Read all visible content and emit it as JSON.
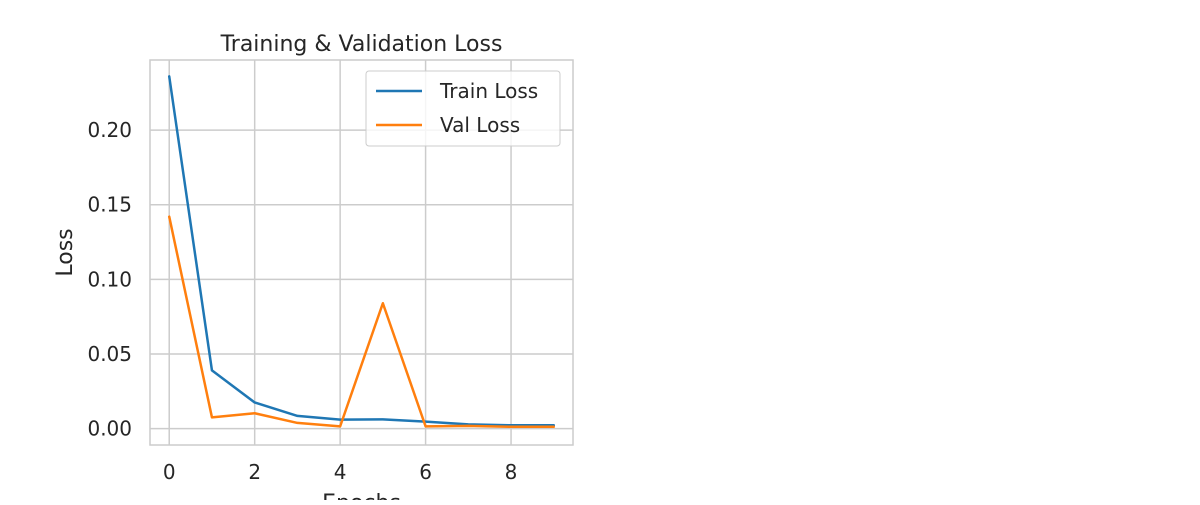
{
  "chart_data": {
    "type": "line",
    "title": "Training & Validation Loss",
    "xlabel": "Epochs",
    "ylabel": "Loss",
    "x": [
      0,
      1,
      2,
      3,
      4,
      5,
      6,
      7,
      8,
      9
    ],
    "xlim": [
      -0.45,
      9.45
    ],
    "ylim": [
      -0.011,
      0.247
    ],
    "xticks": [
      0,
      2,
      4,
      6,
      8
    ],
    "yticks": [
      0.0,
      0.05,
      0.1,
      0.15,
      0.2
    ],
    "xtick_labels": [
      "0",
      "2",
      "4",
      "6",
      "8"
    ],
    "ytick_labels": [
      "0.00",
      "0.05",
      "0.10",
      "0.15",
      "0.20"
    ],
    "grid": true,
    "legend_position": "top-right",
    "series": [
      {
        "name": "Train Loss",
        "color": "#1f77b4",
        "values": [
          0.236,
          0.039,
          0.0175,
          0.0085,
          0.006,
          0.0062,
          0.0047,
          0.0028,
          0.0022,
          0.0022
        ]
      },
      {
        "name": "Val Loss",
        "color": "#ff7f0e",
        "values": [
          0.142,
          0.0075,
          0.0103,
          0.0038,
          0.0015,
          0.084,
          0.0015,
          0.0018,
          0.0012,
          0.0012
        ]
      }
    ]
  }
}
